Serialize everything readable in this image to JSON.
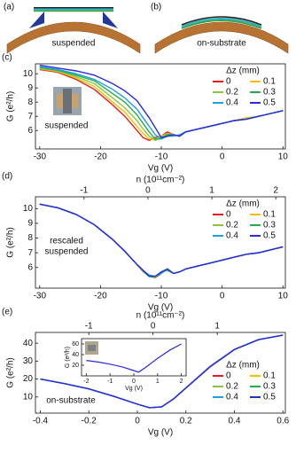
{
  "schematics": [
    {
      "label": "(a)",
      "caption": "suspended"
    },
    {
      "label": "(b)",
      "caption": "on-substrate"
    }
  ],
  "chart_data": [
    {
      "type": "line",
      "panel_label": "(c)",
      "xlabel": "Vg (V)",
      "ylabel": "G (e²/h)",
      "x": [
        -30,
        -27,
        -24,
        -21,
        -18,
        -16,
        -14,
        -13,
        -12,
        -11,
        -10,
        -9,
        -8,
        -7,
        -6,
        -4,
        -2,
        0,
        2,
        4,
        6,
        8,
        10
      ],
      "xlim": [
        -30.7,
        10.4
      ],
      "xticks": [
        -30,
        -20,
        -10,
        0,
        10
      ],
      "ylim": [
        4.7,
        10.7
      ],
      "yticks": [
        6,
        7,
        8,
        9,
        10
      ],
      "legend_title": "Δz (mm)",
      "legend": "upper right",
      "annotations": [
        "suspended"
      ],
      "series": [
        {
          "name": "0",
          "color": "#e41a1c",
          "values": [
            10.3,
            10.1,
            9.6,
            8.9,
            7.8,
            7.0,
            6.0,
            5.5,
            5.3,
            5.5,
            5.6,
            5.9,
            5.7,
            5.6,
            5.9,
            6.1,
            6.3,
            6.5,
            6.7,
            6.8,
            7.0,
            7.2,
            7.4
          ]
        },
        {
          "name": "0.1",
          "color": "#f0c000",
          "values": [
            10.35,
            10.15,
            9.7,
            9.1,
            8.0,
            7.3,
            6.3,
            5.8,
            5.4,
            5.4,
            5.6,
            5.8,
            5.7,
            5.6,
            5.9,
            6.1,
            6.3,
            6.5,
            6.7,
            6.9,
            7.0,
            7.2,
            7.4
          ]
        },
        {
          "name": "0.2",
          "color": "#8bc53f",
          "values": [
            10.4,
            10.2,
            9.8,
            9.3,
            8.3,
            7.6,
            6.7,
            6.1,
            5.6,
            5.3,
            5.5,
            5.8,
            5.6,
            5.7,
            5.9,
            6.1,
            6.3,
            6.5,
            6.7,
            6.8,
            7.0,
            7.2,
            7.4
          ]
        },
        {
          "name": "0.3",
          "color": "#22b04a",
          "values": [
            10.45,
            10.25,
            9.9,
            9.5,
            8.6,
            8.0,
            7.1,
            6.5,
            5.9,
            5.4,
            5.4,
            5.7,
            5.7,
            5.6,
            5.9,
            6.1,
            6.3,
            6.5,
            6.7,
            6.8,
            7.0,
            7.2,
            7.4
          ]
        },
        {
          "name": "0.4",
          "color": "#1e9fe0",
          "values": [
            10.5,
            10.3,
            10.0,
            9.6,
            8.9,
            8.3,
            7.5,
            6.9,
            6.3,
            5.7,
            5.4,
            5.6,
            5.6,
            5.7,
            5.9,
            6.1,
            6.3,
            6.5,
            6.7,
            6.8,
            7.0,
            7.2,
            7.4
          ]
        },
        {
          "name": "0.5",
          "color": "#2a2adf",
          "values": [
            10.6,
            10.4,
            10.2,
            9.9,
            9.3,
            8.8,
            8.1,
            7.5,
            6.9,
            6.2,
            5.5,
            5.6,
            5.7,
            5.6,
            5.9,
            6.1,
            6.3,
            6.5,
            6.7,
            6.8,
            7.0,
            7.2,
            7.4
          ]
        }
      ]
    },
    {
      "type": "line",
      "panel_label": "(d)",
      "xlabel": "Vg (V)",
      "ylabel": "G (e²/h)",
      "x2label": "n (10¹¹cm⁻²)",
      "x": [
        -30,
        -27,
        -24,
        -21,
        -18,
        -16,
        -14,
        -13,
        -12,
        -11,
        -10,
        -9,
        -8,
        -7,
        -6,
        -4,
        -2,
        0,
        2,
        4,
        6,
        8,
        10
      ],
      "xlim": [
        -30.7,
        10.4
      ],
      "xticks": [
        -30,
        -20,
        -10,
        0,
        10
      ],
      "x2lim": [
        -1.76,
        2.15
      ],
      "x2ticks": [
        -1,
        0,
        1,
        2
      ],
      "ylim": [
        4.6,
        10.8
      ],
      "yticks": [
        6,
        7,
        8,
        9,
        10
      ],
      "legend_title": "Δz (mm)",
      "legend": "upper right",
      "annotations": [
        "rescaled",
        "suspended"
      ],
      "series": [
        {
          "name": "0",
          "color": "#e41a1c",
          "values": [
            10.3,
            10.05,
            9.6,
            8.9,
            7.9,
            7.1,
            6.2,
            5.8,
            5.4,
            5.3,
            5.6,
            5.9,
            5.6,
            5.7,
            5.9,
            6.1,
            6.3,
            6.5,
            6.7,
            6.9,
            7.0,
            7.2,
            7.4
          ]
        },
        {
          "name": "0.1",
          "color": "#f0c000",
          "values": [
            10.3,
            10.05,
            9.6,
            8.9,
            7.9,
            7.1,
            6.2,
            5.8,
            5.4,
            5.4,
            5.6,
            5.9,
            5.6,
            5.7,
            5.9,
            6.1,
            6.3,
            6.5,
            6.7,
            6.9,
            7.0,
            7.2,
            7.4
          ]
        },
        {
          "name": "0.2",
          "color": "#8bc53f",
          "values": [
            10.3,
            10.05,
            9.6,
            8.9,
            7.9,
            7.1,
            6.2,
            5.7,
            5.4,
            5.3,
            5.7,
            5.9,
            5.6,
            5.7,
            5.9,
            6.1,
            6.3,
            6.5,
            6.7,
            6.9,
            7.0,
            7.2,
            7.4
          ]
        },
        {
          "name": "0.3",
          "color": "#22b04a",
          "values": [
            10.3,
            10.05,
            9.6,
            8.9,
            7.9,
            7.1,
            6.2,
            5.8,
            5.4,
            5.4,
            5.7,
            5.8,
            5.6,
            5.7,
            5.9,
            6.1,
            6.3,
            6.5,
            6.7,
            6.9,
            7.0,
            7.2,
            7.4
          ]
        },
        {
          "name": "0.4",
          "color": "#1e9fe0",
          "values": [
            10.3,
            10.05,
            9.6,
            8.9,
            7.9,
            7.1,
            6.2,
            5.8,
            5.5,
            5.4,
            5.6,
            5.9,
            5.6,
            5.7,
            5.9,
            6.1,
            6.3,
            6.5,
            6.7,
            6.9,
            7.0,
            7.2,
            7.4
          ]
        },
        {
          "name": "0.5",
          "color": "#2a2adf",
          "values": [
            10.3,
            10.05,
            9.6,
            8.9,
            7.9,
            7.1,
            6.2,
            5.8,
            5.4,
            5.4,
            5.7,
            5.9,
            5.6,
            5.7,
            5.9,
            6.1,
            6.3,
            6.5,
            6.7,
            6.9,
            7.0,
            7.2,
            7.4
          ]
        }
      ]
    },
    {
      "type": "line",
      "panel_label": "(e)",
      "xlabel": "Vg (V)",
      "ylabel": "G (e²/h)",
      "x2label": "n (10¹¹cm⁻²)",
      "x": [
        -0.4,
        -0.3,
        -0.2,
        -0.1,
        0,
        0.05,
        0.1,
        0.15,
        0.2,
        0.3,
        0.4,
        0.5,
        0.6
      ],
      "xlim": [
        -0.42,
        0.61
      ],
      "xticks": [
        -0.4,
        -0.2,
        0,
        0.2,
        0.4,
        0.6
      ],
      "x2lim": [
        -1.83,
        2.06
      ],
      "x2ticks": [
        -1,
        0,
        1
      ],
      "ylim": [
        1,
        46
      ],
      "yticks": [
        10,
        20,
        30,
        40
      ],
      "legend_title": "Δz (mm)",
      "legend": "lower right",
      "annotations": [
        "on-substrate"
      ],
      "series": [
        {
          "name": "0",
          "color": "#e41a1c",
          "values": [
            20,
            17.5,
            14.6,
            10.5,
            6,
            4,
            4.5,
            9,
            15,
            27.2,
            36.6,
            42,
            44.5
          ]
        },
        {
          "name": "0.1",
          "color": "#f0c000",
          "values": [
            20,
            17.5,
            14.5,
            10.5,
            6,
            4,
            4.5,
            9,
            15,
            27,
            36.5,
            42,
            44.5
          ]
        },
        {
          "name": "0.2",
          "color": "#8bc53f",
          "values": [
            20,
            17.5,
            14.5,
            10.5,
            6,
            4,
            4.5,
            9,
            15,
            27,
            36.5,
            42,
            44.5
          ]
        },
        {
          "name": "0.3",
          "color": "#22b04a",
          "values": [
            20,
            17.5,
            14.5,
            10.5,
            6,
            4,
            4.5,
            9,
            15,
            27,
            36.5,
            42,
            44.5
          ]
        },
        {
          "name": "0.4",
          "color": "#1e9fe0",
          "values": [
            20,
            17.5,
            14.5,
            10.5,
            6,
            4,
            4.5,
            9,
            15,
            27,
            36.5,
            42,
            44.5
          ]
        },
        {
          "name": "0.5",
          "color": "#2a2adf",
          "values": [
            20,
            17.4,
            14.5,
            10.5,
            6,
            4,
            4.5,
            9,
            15,
            26.8,
            36.4,
            42,
            44.5
          ]
        }
      ]
    },
    {
      "type": "line",
      "xlabel": "Vg (V)",
      "ylabel": "G (e²/h)",
      "x": [
        -2,
        -1.5,
        -1,
        -0.5,
        0,
        0.2,
        0.5,
        1,
        1.5,
        2
      ],
      "xlim": [
        -2.2,
        2.2
      ],
      "xticks": [
        -2,
        -1,
        0,
        1,
        2
      ],
      "ylim": [
        0,
        70
      ],
      "yticks": [
        20,
        40,
        60
      ],
      "series": [
        {
          "color": "#2a2adf",
          "values": [
            29,
            26,
            22,
            17,
            10,
            7,
            16,
            33,
            48,
            60
          ]
        }
      ]
    }
  ]
}
